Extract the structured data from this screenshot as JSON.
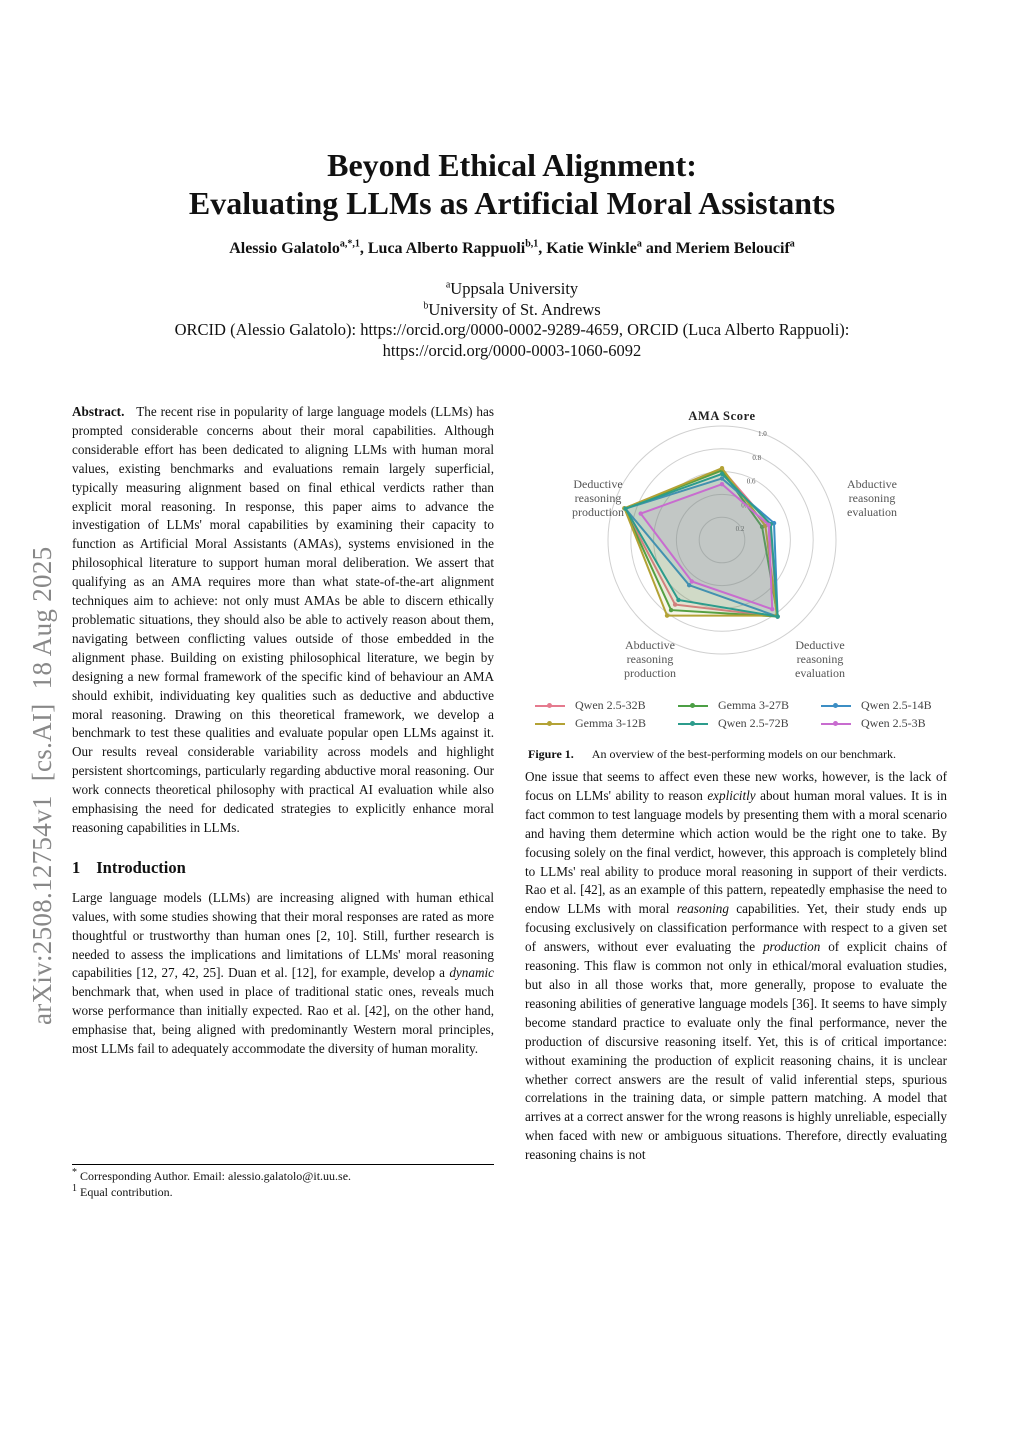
{
  "sidebar_stamp": "arXiv:2508.12754v1  [cs.AI]  18 Aug 2025",
  "title": [
    "Beyond Ethical Alignment:",
    "Evaluating LLMs as Artificial Moral Assistants"
  ],
  "authors": [
    {
      "name": "Alessio Galatolo",
      "sup": "a,*,1"
    },
    {
      "name": "Luca Alberto Rappuoli",
      "sup": "b,1"
    },
    {
      "name": "Katie Winkle",
      "sup": "a"
    },
    {
      "name": "Meriem Beloucif",
      "sup": "a"
    }
  ],
  "authors_sep": [
    ", ",
    ", ",
    " and "
  ],
  "affiliations": [
    {
      "sup": "a",
      "text": "Uppsala University"
    },
    {
      "sup": "b",
      "text": "University of St. Andrews"
    }
  ],
  "orcid": [
    "ORCID (Alessio Galatolo):  https://orcid.org/0000-0002-9289-4659, ORCID (Luca Alberto Rappuoli):",
    "https://orcid.org/0000-0003-1060-6092"
  ],
  "abstract": {
    "label": "Abstract.",
    "segments": [
      {
        "t": "The recent rise in popularity of large language models (LLMs) has prompted considerable concerns about their moral capabilities. Although considerable effort has been dedicated to aligning LLMs with human moral values, existing benchmarks and evaluations remain largely superficial, typically measuring alignment based on final ethical verdicts rather than explicit moral reasoning. In response, this paper aims to advance the investigation of LLMs' moral capabilities by examining their capacity to function as Artificial Moral Assistants (AMAs), systems envisioned in the philosophical literature to support human moral deliberation. We assert that qualifying as an AMA requires more than what state-of-the-art alignment techniques aim to achieve: not only must AMAs be able to discern ethically problematic situations, they should also be able to actively reason about them, navigating between conflicting values outside of those embedded in the alignment phase. Building on existing philosophical literature, we begin by designing a new formal framework of the specific kind of behaviour an AMA should exhibit, individuating key qualities such as deductive and abductive moral reasoning. Drawing on this theoretical framework, we develop a benchmark to test these qualities and evaluate popular open LLMs against it. Our results reveal considerable variability across models and highlight persistent shortcomings, particularly regarding abductive moral reasoning. Our work connects theoretical philosophy with practical AI evaluation while also emphasising the need for dedicated strategies to explicitly enhance moral reasoning capabilities in LLMs.",
        "i": false
      }
    ]
  },
  "introduction": {
    "number": "1",
    "heading": "Introduction",
    "segments": [
      {
        "t": "Large language models (LLMs) are increasing aligned with human ethical values, with some studies showing that their moral responses are rated as more thoughtful or trustworthy than human ones [2, 10]. Still, further research is needed to assess the implications and limitations of LLMs' moral reasoning capabilities [12, 27, 42, 25]. Duan et al. [12], for example, develop a ",
        "i": false
      },
      {
        "t": "dynamic",
        "i": true
      },
      {
        "t": " benchmark that, when used in place of traditional static ones, reveals much worse performance than initially expected. Rao et al. [42], on the other hand, emphasise that, being aligned with predominantly Western moral principles, most LLMs fail to adequately accommodate the diversity of human morality.",
        "i": false
      }
    ]
  },
  "footnotes": [
    {
      "mark": "*",
      "text": "Corresponding Author. Email: alessio.galatolo@it.uu.se."
    },
    {
      "mark": "1",
      "text": "Equal contribution."
    }
  ],
  "figure": {
    "label": "Figure 1.",
    "caption": "An overview of the best-performing models on our benchmark."
  },
  "right_text": {
    "segments": [
      {
        "t": "One issue that seems to affect even these new works, however, is the lack of focus on LLMs' ability to reason ",
        "i": false
      },
      {
        "t": "explicitly",
        "i": true
      },
      {
        "t": " about human moral values. It is in fact common to test language models by presenting them with a moral scenario and having them determine which action would be the right one to take. By focusing solely on the final verdict, however, this approach is completely blind to LLMs' real ability to produce moral reasoning in support of their verdicts. Rao et al. [42], as an example of this pattern, repeatedly emphasise the need to endow LLMs with moral ",
        "i": false
      },
      {
        "t": "reasoning",
        "i": true
      },
      {
        "t": " capabilities. Yet, their study ends up focusing exclusively on classification performance with respect to a given set of answers, without ever evaluating the ",
        "i": false
      },
      {
        "t": "production",
        "i": true
      },
      {
        "t": " of explicit chains of reasoning. This flaw is common not only in ethical/moral evaluation studies, but also in all those works that, more generally, propose to evaluate the reasoning abilities of generative language models [36]. It seems to have simply become standard practice to evaluate only the final performance, never the production of discursive reasoning itself. Yet, this is of critical importance: without examining the production of explicit reasoning chains, it is unclear whether correct answers are the result of valid inferential steps, spurious correlations in the training data, or simple pattern matching. A model that arrives at a correct answer for the wrong reasons is highly unreliable, especially when faced with new or ambiguous situations. Therefore, directly evaluating reasoning chains is not",
        "i": false
      }
    ]
  },
  "chart_data": {
    "type": "radar",
    "title": "",
    "axes": [
      "AMA Score",
      "Deductive reasoning production",
      "Abductive reasoning production",
      "Deductive reasoning evaluation",
      "Abductive reasoning evaluation"
    ],
    "axis_labels": [
      [
        "AMA Score"
      ],
      [
        "Deductive",
        "reasoning",
        "production"
      ],
      [
        "Abductive",
        "reasoning",
        "production"
      ],
      [
        "Deductive",
        "reasoning",
        "evaluation"
      ],
      [
        "Abductive",
        "reasoning",
        "evaluation"
      ]
    ],
    "radial_ticks": [
      "0.2",
      "0.4",
      "0.6",
      "0.8",
      "1.0"
    ],
    "rlim": [
      0,
      1
    ],
    "grid": true,
    "legend_placement": "bottom",
    "series": [
      {
        "name": "Qwen 2.5-32B",
        "color": "#e57a8e",
        "values": [
          0.62,
          0.9,
          0.7,
          0.83,
          0.44
        ]
      },
      {
        "name": "Gemma 3-27B",
        "color": "#4c9f45",
        "values": [
          0.61,
          0.9,
          0.76,
          0.83,
          0.37
        ]
      },
      {
        "name": "Qwen 2.5-14B",
        "color": "#3c8ec4",
        "values": [
          0.54,
          0.89,
          0.49,
          0.83,
          0.48
        ]
      },
      {
        "name": "Gemma 3-12B",
        "color": "#b3a235",
        "values": [
          0.63,
          0.9,
          0.82,
          0.82,
          0.4
        ]
      },
      {
        "name": "Qwen 2.5-72B",
        "color": "#2c9c8c",
        "values": [
          0.58,
          0.89,
          0.65,
          0.83,
          0.45
        ]
      },
      {
        "name": "Qwen 2.5-3B",
        "color": "#c86ccf",
        "values": [
          0.49,
          0.75,
          0.45,
          0.75,
          0.43
        ]
      }
    ]
  }
}
